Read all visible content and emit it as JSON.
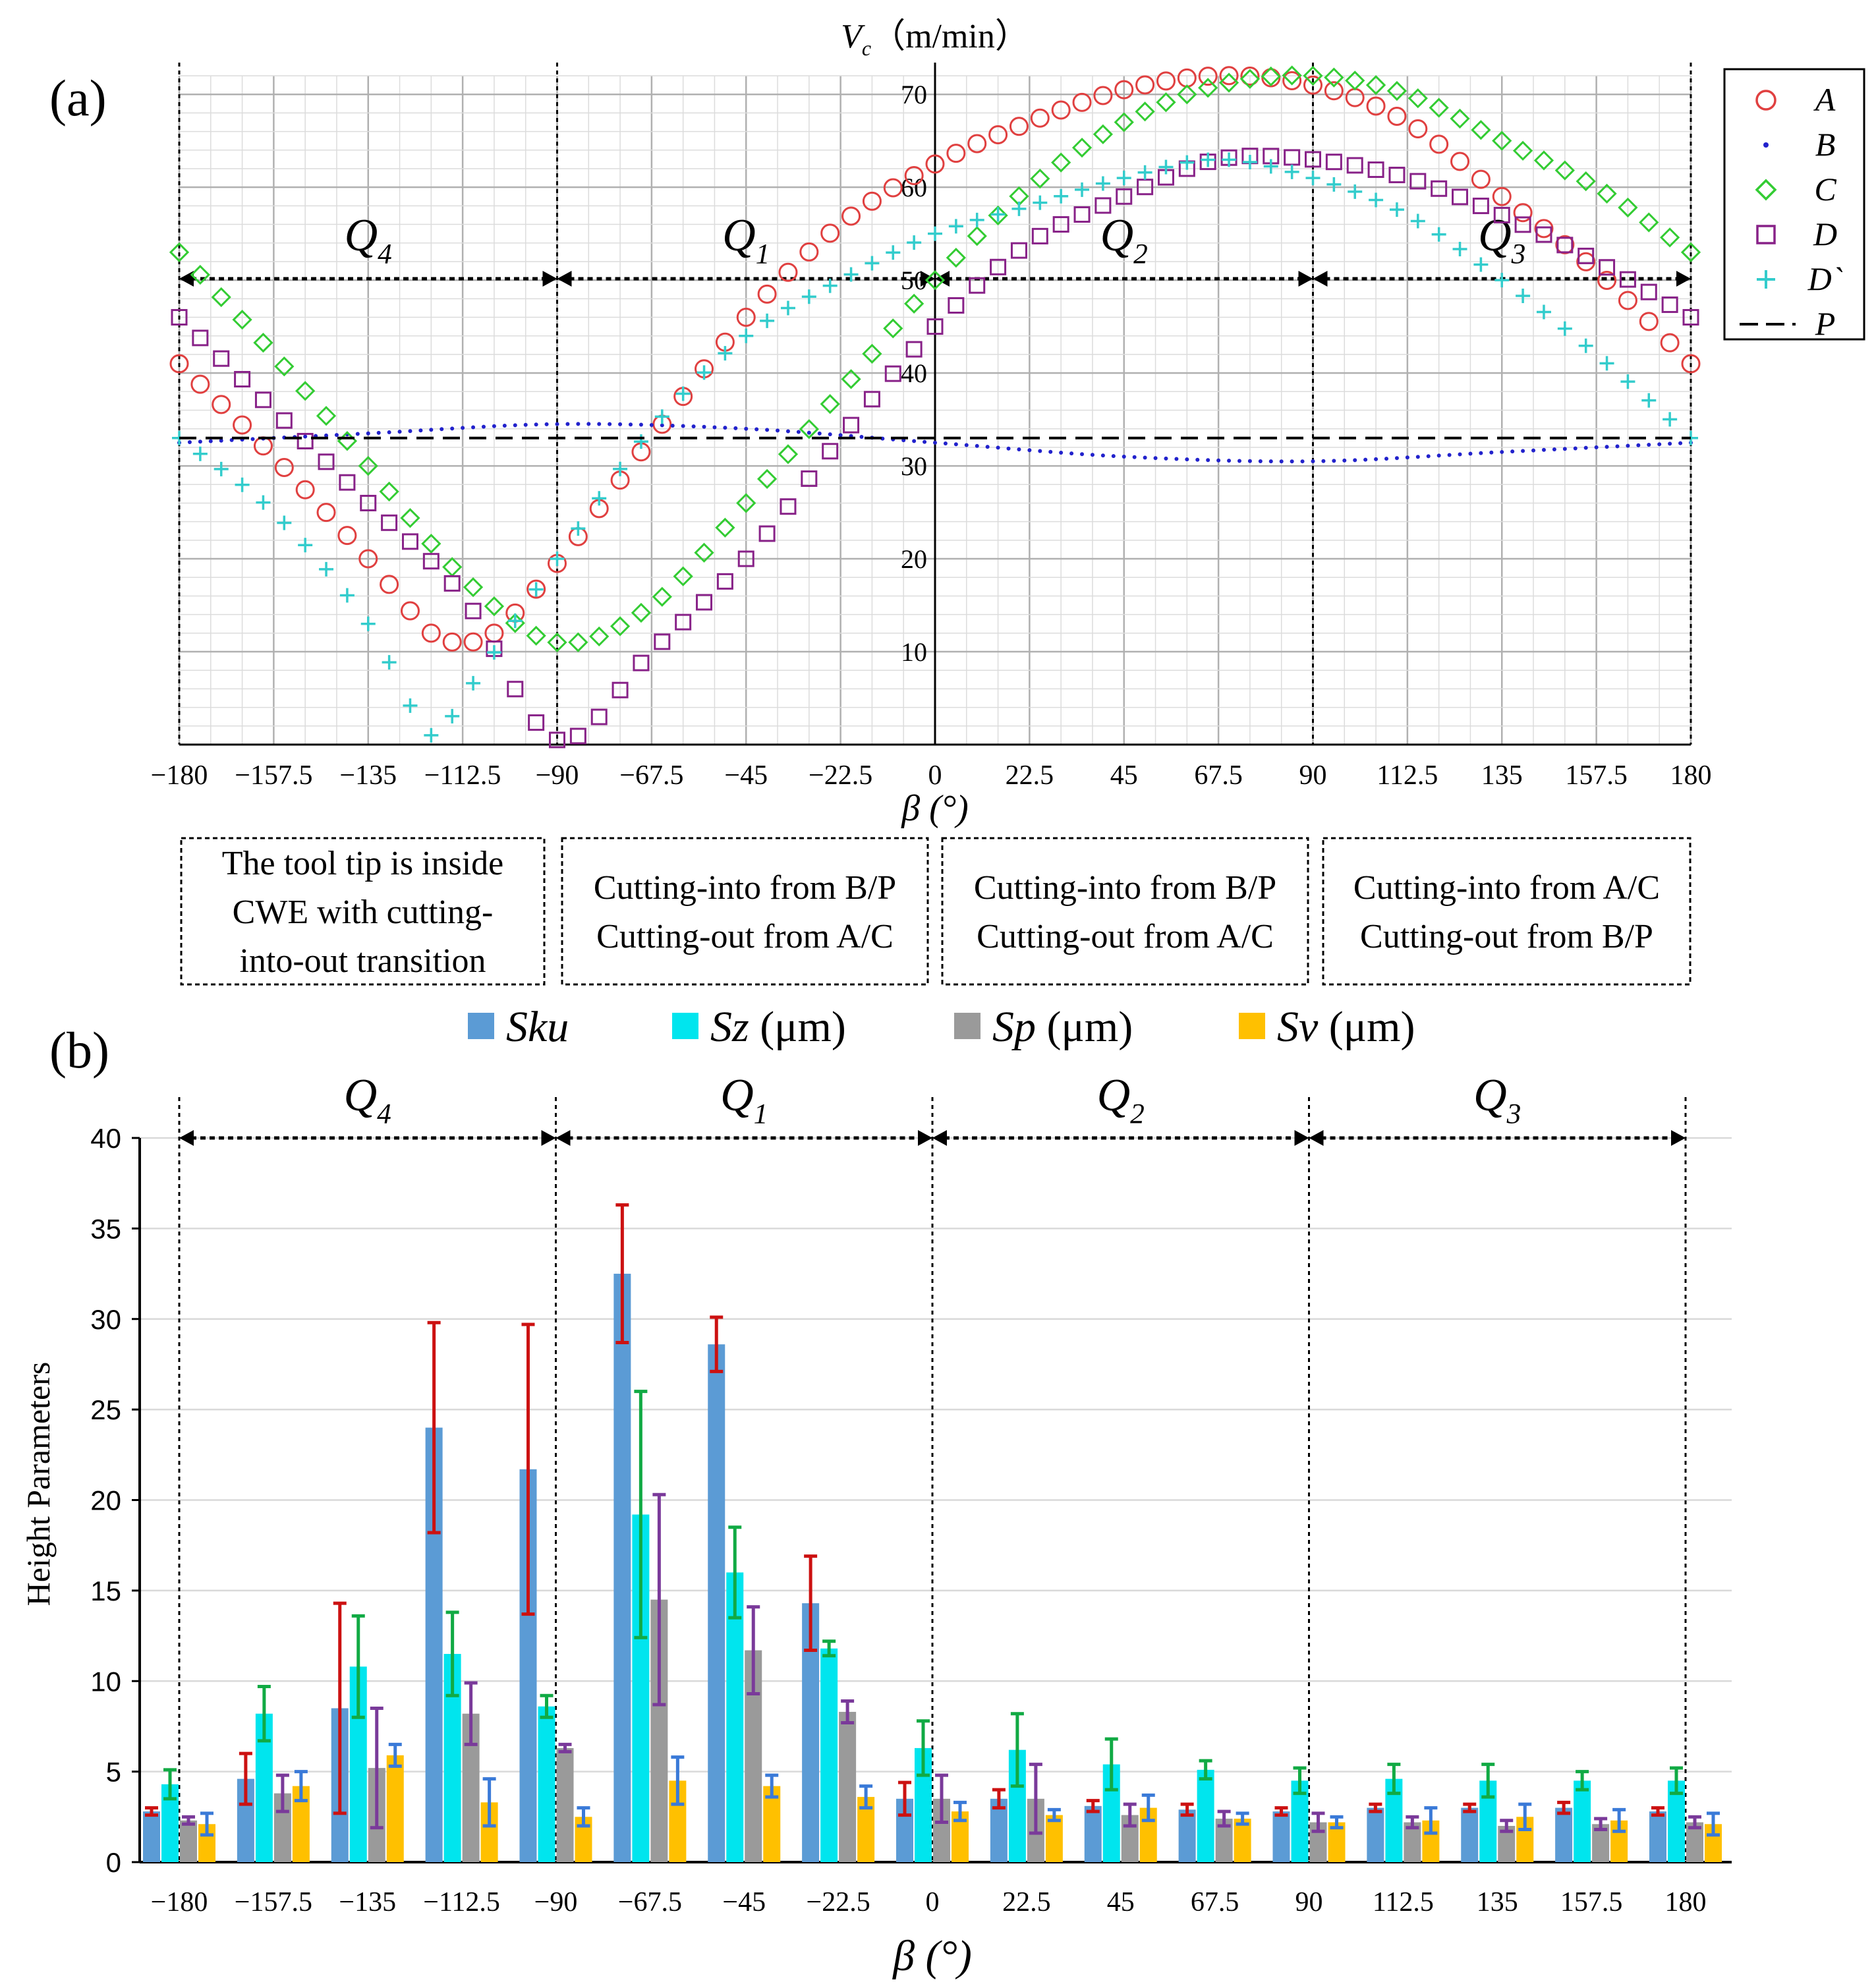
{
  "chart_data": [
    {
      "panel_label": "(a)",
      "type": "scatter",
      "title": "",
      "xlabel": "β (°)",
      "ylabel_parts": {
        "symbol": "V",
        "subscript": "c",
        "unit": "（m/min）"
      },
      "xlim": [
        -180,
        180
      ],
      "ylim": [
        0,
        72
      ],
      "xticks": [
        "-180",
        "-157.5",
        "-135",
        "-112.5",
        "-90",
        "-67.5",
        "-45",
        "-22.5",
        "0",
        "22.5",
        "45",
        "67.5",
        "90",
        "112.5",
        "135",
        "157.5",
        "180"
      ],
      "yticks": [
        "10",
        "20",
        "30",
        "40",
        "50",
        "60",
        "70"
      ],
      "grid": true,
      "legend_position": "right, outside",
      "legend": [
        {
          "label": "A",
          "marker": "circle",
          "color": "#e04040"
        },
        {
          "label": "B",
          "marker": "dot",
          "color": "#2222cc"
        },
        {
          "label": "C",
          "marker": "diamond",
          "color": "#33cc33"
        },
        {
          "label": "D",
          "marker": "square",
          "color": "#882288"
        },
        {
          "label": "D`",
          "marker": "plus",
          "color": "#33cccc"
        },
        {
          "label": "P",
          "marker": "dashed-line",
          "color": "#000000"
        }
      ],
      "series": [
        {
          "name": "A",
          "x": [
            -180,
            -157.5,
            -135,
            -120,
            -112.5,
            -105,
            -90,
            -67.5,
            -45,
            -22.5,
            0,
            22.5,
            45,
            67.5,
            90,
            112.5,
            135,
            157.5,
            180
          ],
          "y": [
            41,
            31,
            20,
            12,
            11,
            12,
            19.5,
            33,
            46,
            56,
            62.5,
            67,
            70.5,
            72,
            71,
            67,
            59,
            51,
            41
          ]
        },
        {
          "name": "B",
          "x": [
            -180,
            -135,
            -90,
            -45,
            0,
            45,
            90,
            135,
            180
          ],
          "y": [
            32.5,
            33.5,
            34.5,
            34,
            32.5,
            31,
            30.5,
            31.5,
            32.5
          ]
        },
        {
          "name": "C",
          "x": [
            -180,
            -157.5,
            -135,
            -112.5,
            -90,
            -67.5,
            -45,
            -22.5,
            0,
            22.5,
            45,
            67.5,
            90,
            112.5,
            135,
            157.5,
            180
          ],
          "y": [
            53,
            42,
            30,
            18,
            11,
            15,
            26,
            38,
            50,
            60,
            67,
            71,
            72,
            70,
            65,
            60,
            53
          ]
        },
        {
          "name": "D",
          "x": [
            -180,
            -157.5,
            -135,
            -112.5,
            -90,
            -67.5,
            -45,
            -22.5,
            0,
            22.5,
            45,
            67.5,
            90,
            112.5,
            135,
            157.5,
            180
          ],
          "y": [
            46,
            36,
            26,
            16,
            0.5,
            10,
            20,
            33,
            45,
            54,
            59,
            63,
            63,
            61,
            57,
            52,
            46
          ]
        },
        {
          "name": "D`",
          "x": [
            -180,
            -157.5,
            -135,
            -120,
            -112.5,
            -90,
            -67.5,
            -45,
            -22.5,
            0,
            22.5,
            45,
            67.5,
            90,
            112.5,
            135,
            157.5,
            180
          ],
          "y": [
            33,
            25,
            13,
            1,
            5,
            20,
            34,
            44,
            50,
            55,
            58,
            61,
            63,
            61,
            57,
            50,
            42,
            33
          ]
        },
        {
          "name": "P",
          "x": [
            -180,
            180
          ],
          "y": [
            33,
            33
          ]
        }
      ],
      "quadrants": [
        {
          "label": "Q",
          "sub": "4",
          "from": -180,
          "to": -90
        },
        {
          "label": "Q",
          "sub": "1",
          "from": -90,
          "to": 0
        },
        {
          "label": "Q",
          "sub": "2",
          "from": 0,
          "to": 90
        },
        {
          "label": "Q",
          "sub": "3",
          "from": 90,
          "to": 180
        }
      ],
      "annotation_boxes": [
        {
          "lines": [
            "The tool tip is inside",
            "CWE with cutting-",
            "into-out transition"
          ]
        },
        {
          "lines": [
            "Cutting-into from B/P",
            "Cutting-out from A/C"
          ]
        },
        {
          "lines": [
            "Cutting-into from B/P",
            "Cutting-out from A/C"
          ]
        },
        {
          "lines": [
            "Cutting-into from A/C",
            "Cutting-out from B/P"
          ]
        }
      ]
    },
    {
      "panel_label": "(b)",
      "type": "bar",
      "title": "",
      "xlabel": "β (°)",
      "ylabel": "Height Parameters",
      "ylim": [
        0,
        40
      ],
      "yticks": [
        "0",
        "5",
        "10",
        "15",
        "20",
        "25",
        "30",
        "35",
        "40"
      ],
      "grid": true,
      "legend_position": "top",
      "categories": [
        "-180",
        "-157.5",
        "-135",
        "-112.5",
        "-90",
        "-67.5",
        "-45",
        "-22.5",
        "0",
        "22.5",
        "45",
        "67.5",
        "90",
        "112.5",
        "135",
        "157.5",
        "180"
      ],
      "series": [
        {
          "name": "Sku",
          "unit": "",
          "color": "#5b9bd5",
          "error_color": "#cc1111",
          "values": [
            2.8,
            4.6,
            8.5,
            24,
            21.7,
            32.5,
            28.6,
            14.3,
            3.5,
            3.5,
            3.1,
            2.9,
            2.8,
            3.0,
            3.0,
            3.0,
            2.8
          ],
          "errors": [
            0.2,
            1.4,
            5.8,
            5.8,
            8.0,
            3.8,
            1.5,
            2.6,
            0.9,
            0.5,
            0.3,
            0.3,
            0.2,
            0.2,
            0.2,
            0.3,
            0.2
          ]
        },
        {
          "name": "Sz",
          "unit": "(μm)",
          "color": "#00e5ee",
          "error_color": "#11aa44",
          "values": [
            4.3,
            8.2,
            10.8,
            11.5,
            8.6,
            19.2,
            16,
            11.8,
            6.3,
            6.2,
            5.4,
            5.1,
            4.5,
            4.6,
            4.5,
            4.5,
            4.5
          ],
          "errors": [
            0.8,
            1.5,
            2.8,
            2.3,
            0.6,
            6.8,
            2.5,
            0.4,
            1.5,
            2.0,
            1.4,
            0.5,
            0.7,
            0.8,
            0.9,
            0.5,
            0.7
          ]
        },
        {
          "name": "Sp",
          "unit": "(μm)",
          "color": "#9a9a9a",
          "error_color": "#7a3a9a",
          "values": [
            2.3,
            3.8,
            5.2,
            8.2,
            6.3,
            14.5,
            11.7,
            8.3,
            3.5,
            3.5,
            2.6,
            2.4,
            2.2,
            2.2,
            2.0,
            2.1,
            2.2
          ],
          "errors": [
            0.2,
            1.0,
            3.3,
            1.7,
            0.2,
            5.8,
            2.4,
            0.6,
            1.3,
            1.9,
            0.6,
            0.4,
            0.5,
            0.3,
            0.3,
            0.3,
            0.3
          ]
        },
        {
          "name": "Sv",
          "unit": "(μm)",
          "color": "#ffc000",
          "error_color": "#3a7ad8",
          "values": [
            2.1,
            4.2,
            5.9,
            3.3,
            2.5,
            4.5,
            4.2,
            3.6,
            2.8,
            2.6,
            3.0,
            2.4,
            2.2,
            2.3,
            2.5,
            2.3,
            2.1
          ],
          "errors": [
            0.6,
            0.8,
            0.6,
            1.3,
            0.5,
            1.3,
            0.6,
            0.6,
            0.5,
            0.3,
            0.7,
            0.3,
            0.3,
            0.7,
            0.7,
            0.6,
            0.6
          ]
        }
      ],
      "quadrants": [
        {
          "label": "Q",
          "sub": "4",
          "from": "-180",
          "to": "-90"
        },
        {
          "label": "Q",
          "sub": "1",
          "from": "-90",
          "to": "0"
        },
        {
          "label": "Q",
          "sub": "2",
          "from": "0",
          "to": "90"
        },
        {
          "label": "Q",
          "sub": "3",
          "from": "90",
          "to": "180"
        }
      ]
    }
  ]
}
